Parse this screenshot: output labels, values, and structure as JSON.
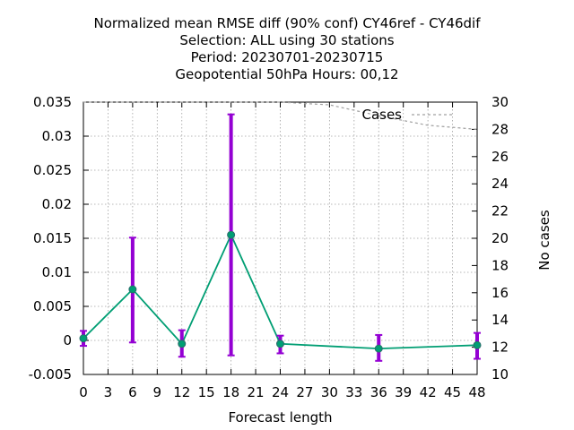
{
  "chart_data": {
    "type": "line",
    "title_lines": [
      "Normalized mean RMSE diff (90% conf) CY46ref - CY46dif",
      "Selection: ALL using    30 stations",
      "Period: 20230701-20230715",
      "Geopotential 50hPa   Hours:  00,12"
    ],
    "xlabel": "Forecast length",
    "ylabel": "",
    "y2label": "No cases",
    "xlim": [
      0,
      48
    ],
    "ylim": [
      -0.005,
      0.035
    ],
    "y2lim": [
      10,
      30
    ],
    "xticks": [
      0,
      3,
      6,
      9,
      12,
      15,
      18,
      21,
      24,
      27,
      30,
      33,
      36,
      39,
      42,
      45,
      48
    ],
    "yticks": [
      -0.005,
      0,
      0.005,
      0.01,
      0.015,
      0.02,
      0.025,
      0.03,
      0.035
    ],
    "ytick_labels": [
      "-0.005",
      "0",
      "0.005",
      "0.01",
      "0.015",
      "0.02",
      "0.025",
      "0.03",
      "0.035"
    ],
    "y2ticks": [
      10,
      12,
      14,
      16,
      18,
      20,
      22,
      24,
      26,
      28,
      30
    ],
    "grid": true,
    "series": [
      {
        "x": [
          0,
          6,
          12,
          18,
          24,
          36,
          48
        ],
        "y": [
          0.0003,
          0.0075,
          -0.0005,
          0.0155,
          -0.0005,
          -0.0012,
          -0.0007
        ],
        "err_low": [
          -0.0008,
          -0.0003,
          -0.0024,
          -0.0022,
          -0.0019,
          -0.003,
          -0.0027
        ],
        "err_high": [
          0.0014,
          0.0151,
          0.0015,
          0.0332,
          0.0007,
          0.0008,
          0.0011
        ],
        "color": "#009e73",
        "error_color": "#9400d3"
      },
      {
        "name": "Cases",
        "axis": "y2",
        "x": [
          0,
          6,
          12,
          18,
          24,
          30,
          36,
          42,
          48
        ],
        "y": [
          30,
          30,
          30,
          30,
          30,
          29.8,
          29,
          28.3,
          28
        ],
        "color": "#a0a0a0",
        "dash": true
      }
    ],
    "legend_position": "top-right"
  }
}
